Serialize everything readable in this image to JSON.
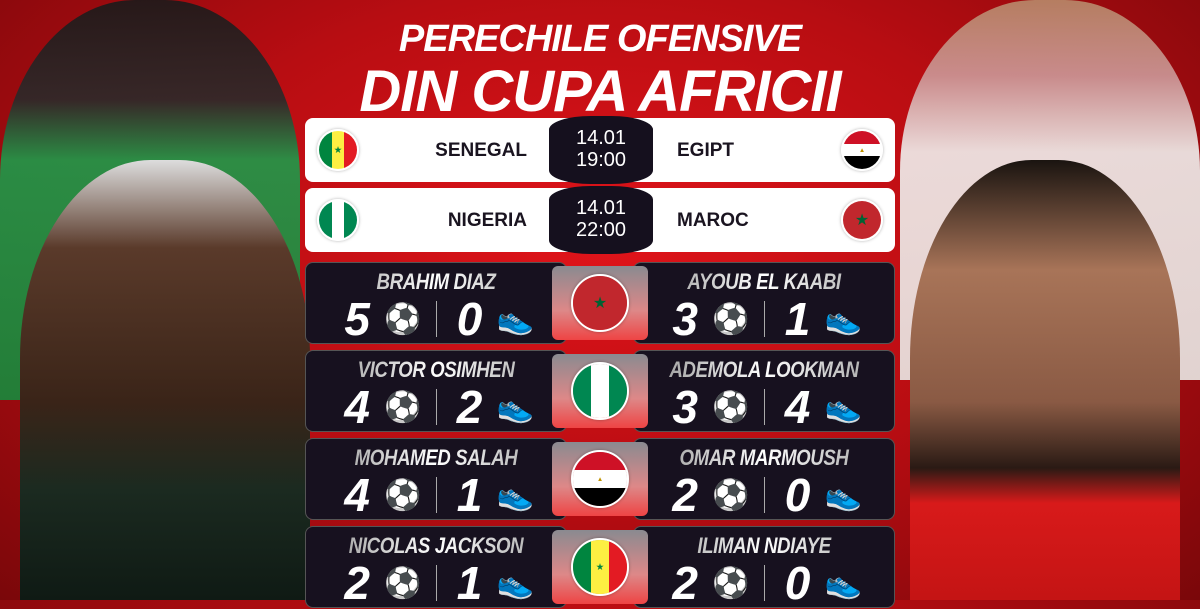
{
  "title": {
    "line1": "PERECHILE OFENSIVE",
    "line2": "DIN CUPA AFRICII"
  },
  "matches": [
    {
      "home": "SENEGAL",
      "home_flag": "senegal",
      "date": "14.01",
      "time": "19:00",
      "away": "EGIPT",
      "away_flag": "egypt"
    },
    {
      "home": "NIGERIA",
      "home_flag": "nigeria",
      "date": "14.01",
      "time": "22:00",
      "away": "MAROC",
      "away_flag": "morocco"
    }
  ],
  "pairs": [
    {
      "flag": "morocco",
      "left": {
        "name": "BRAHIM DIAZ",
        "goals": "5",
        "assists": "0"
      },
      "right": {
        "name": "AYOUB EL KAABI",
        "goals": "3",
        "assists": "1"
      }
    },
    {
      "flag": "nigeria",
      "left": {
        "name": "VICTOR OSIMHEN",
        "goals": "4",
        "assists": "2"
      },
      "right": {
        "name": "ADEMOLA LOOKMAN",
        "goals": "3",
        "assists": "4"
      }
    },
    {
      "flag": "egypt",
      "left": {
        "name": "MOHAMED SALAH",
        "goals": "4",
        "assists": "1"
      },
      "right": {
        "name": "OMAR MARMOUSH",
        "goals": "2",
        "assists": "0"
      }
    },
    {
      "flag": "senegal",
      "left": {
        "name": "NICOLAS JACKSON",
        "goals": "2",
        "assists": "1"
      },
      "right": {
        "name": "ILIMAN NDIAYE",
        "goals": "2",
        "assists": "0"
      }
    }
  ],
  "icons": {
    "goals": "soccer-ball-icon",
    "assists": "football-boot-icon"
  },
  "colors": {
    "background": "#d0121a",
    "card": "#17111f",
    "accent": "#ffffff"
  }
}
